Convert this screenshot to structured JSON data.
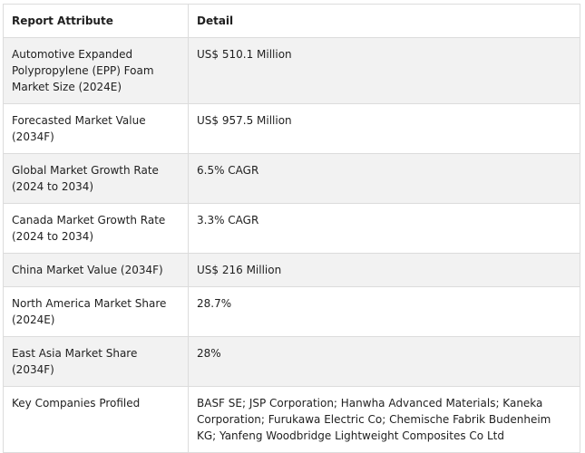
{
  "table": {
    "headers": [
      "Report Attribute",
      "Detail"
    ],
    "rows": [
      {
        "attribute": "Automotive Expanded Polypropylene (EPP) Foam Market Size (2024E)",
        "detail": "US$ 510.1 Million"
      },
      {
        "attribute": "Forecasted Market Value (2034F)",
        "detail": "US$ 957.5 Million"
      },
      {
        "attribute": "Global Market Growth Rate (2024 to 2034)",
        "detail": "6.5% CAGR"
      },
      {
        "attribute": "Canada Market Growth Rate (2024 to 2034)",
        "detail": "3.3% CAGR"
      },
      {
        "attribute": "China Market Value (2034F)",
        "detail": "US$ 216 Million"
      },
      {
        "attribute": "North America Market Share (2024E)",
        "detail": "28.7%"
      },
      {
        "attribute": "East Asia Market Share (2034F)",
        "detail": "28%"
      },
      {
        "attribute": "Key Companies Profiled",
        "detail": "BASF SE; JSP Corporation; Hanwha Advanced Materials; Kaneka Corporation; Furukawa Electric Co; Chemische Fabrik Budenheim KG; Yanfeng Woodbridge Lightweight Composites Co Ltd"
      }
    ]
  }
}
